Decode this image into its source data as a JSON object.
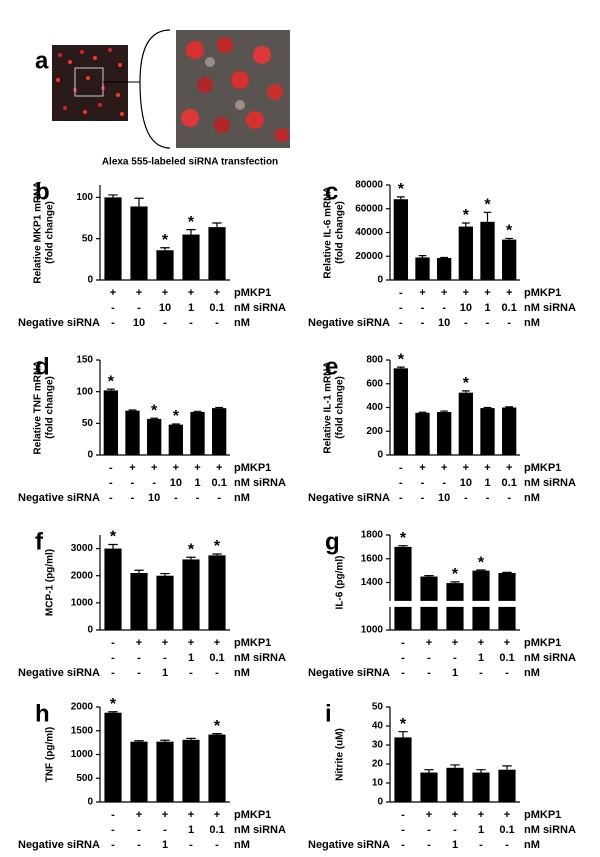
{
  "panel_a": {
    "label": "a",
    "caption": "Alexa 555-labeled siRNA transfection"
  },
  "chart_data": [
    {
      "type": "bar",
      "label": "b",
      "ylabel": [
        "Relative MKP1 mRNA",
        "(fold change)"
      ],
      "values": [
        100,
        89,
        36,
        55,
        64
      ],
      "errors": [
        3,
        10,
        3,
        6,
        5
      ],
      "stars": [
        null,
        null,
        "*",
        "*",
        null
      ],
      "ylim": [
        0,
        115
      ],
      "yticks": [
        0,
        50,
        100
      ],
      "color": "#000000",
      "rows": [
        {
          "right": "pMKP1",
          "cells": [
            "+",
            "+",
            "+",
            "+",
            "+"
          ]
        },
        {
          "right": "nM siRNA",
          "cells": [
            "-",
            "-",
            "10",
            "1",
            "0.1"
          ]
        },
        {
          "left": "Negative siRNA",
          "right": "nM",
          "cells": [
            "-",
            "10",
            "-",
            "-",
            "-"
          ]
        }
      ]
    },
    {
      "type": "bar",
      "label": "c",
      "ylabel": [
        "Relative IL-6 mRNA",
        "(fold change)"
      ],
      "values": [
        68000,
        19000,
        18500,
        45000,
        49000,
        34000
      ],
      "errors": [
        2000,
        1500,
        500,
        3000,
        8000,
        1000
      ],
      "stars": [
        "*",
        null,
        null,
        "*",
        "*",
        "*"
      ],
      "ylim": [
        0,
        80000
      ],
      "yticks": [
        0,
        20000,
        40000,
        60000,
        80000
      ],
      "color": "#000000",
      "rows": [
        {
          "right": "pMKP1",
          "cells": [
            "-",
            "+",
            "+",
            "+",
            "+",
            "+"
          ]
        },
        {
          "right": "nM siRNA",
          "cells": [
            "-",
            "-",
            "-",
            "10",
            "1",
            "0.1"
          ]
        },
        {
          "left": "Negative siRNA",
          "right": "nM",
          "cells": [
            "-",
            "-",
            "10",
            "-",
            "-",
            "-"
          ]
        }
      ]
    },
    {
      "type": "bar",
      "label": "d",
      "ylabel": [
        "Relative TNF mRNA",
        "(fold change)"
      ],
      "values": [
        102,
        70,
        57,
        48,
        68,
        74
      ],
      "errors": [
        2,
        1,
        1,
        1,
        1,
        1
      ],
      "stars": [
        "*",
        null,
        "*",
        "*",
        null,
        null
      ],
      "ylim": [
        0,
        150
      ],
      "yticks": [
        0,
        50,
        100,
        150
      ],
      "color": "#000000",
      "rows": [
        {
          "right": "pMKP1",
          "cells": [
            "-",
            "+",
            "+",
            "+",
            "+",
            "+"
          ]
        },
        {
          "right": "nM siRNA",
          "cells": [
            "-",
            "-",
            "-",
            "10",
            "1",
            "0.1"
          ]
        },
        {
          "left": "Negative siRNA",
          "right": "nM",
          "cells": [
            "-",
            "-",
            "10",
            "-",
            "-",
            "-"
          ]
        }
      ]
    },
    {
      "type": "bar",
      "label": "e",
      "ylabel": [
        "Relative IL-1 mRNA",
        "(fold change)"
      ],
      "values": [
        730,
        355,
        362,
        525,
        395,
        400
      ],
      "errors": [
        10,
        5,
        8,
        15,
        5,
        5
      ],
      "stars": [
        "*",
        null,
        null,
        "*",
        null,
        null
      ],
      "ylim": [
        0,
        800
      ],
      "yticks": [
        0,
        200,
        400,
        600,
        800
      ],
      "color": "#000000",
      "rows": [
        {
          "right": "pMKP1",
          "cells": [
            "-",
            "+",
            "+",
            "+",
            "+",
            "+"
          ]
        },
        {
          "right": "nM siRNA",
          "cells": [
            "-",
            "-",
            "-",
            "10",
            "1",
            "0.1"
          ]
        },
        {
          "left": "Negative siRNA",
          "right": "nM",
          "cells": [
            "-",
            "-",
            "10",
            "-",
            "-",
            "-"
          ]
        }
      ]
    },
    {
      "type": "bar",
      "label": "f",
      "ylabel": [
        "MCP-1 (pg/ml)"
      ],
      "values": [
        3000,
        2100,
        2000,
        2600,
        2750
      ],
      "errors": [
        150,
        100,
        80,
        80,
        50
      ],
      "stars": [
        "*",
        null,
        null,
        "*",
        "*"
      ],
      "ylim": [
        0,
        3500
      ],
      "yticks": [
        0,
        1000,
        2000,
        3000
      ],
      "color": "#000000",
      "rows": [
        {
          "right": "pMKP1",
          "cells": [
            "-",
            "+",
            "+",
            "+",
            "+"
          ]
        },
        {
          "right": "nM siRNA",
          "cells": [
            "-",
            "-",
            "-",
            "1",
            "0.1"
          ]
        },
        {
          "left": "Negative siRNA",
          "right": "nM",
          "cells": [
            "-",
            "-",
            "1",
            "-",
            "-"
          ]
        }
      ]
    },
    {
      "type": "bar",
      "label": "g",
      "ylabel": [
        "IL-6 (pg/ml)"
      ],
      "values": [
        1700,
        1450,
        1395,
        1500,
        1480
      ],
      "errors": [
        10,
        8,
        10,
        5,
        5
      ],
      "stars": [
        "*",
        null,
        "*",
        "*",
        null
      ],
      "ylim": [
        1000,
        1800
      ],
      "yticks": [
        1000,
        1400,
        1600,
        1800
      ],
      "broken_axis": true,
      "color": "#000000",
      "rows": [
        {
          "right": "pMKP1",
          "cells": [
            "-",
            "+",
            "+",
            "+",
            "+"
          ]
        },
        {
          "right": "nM siRNA",
          "cells": [
            "-",
            "-",
            "-",
            "1",
            "0.1"
          ]
        },
        {
          "left": "Negative siRNA",
          "right": "nM",
          "cells": [
            "-",
            "-",
            "1",
            "-",
            "-"
          ]
        }
      ]
    },
    {
      "type": "bar",
      "label": "h",
      "ylabel": [
        "TNF (pg/ml)"
      ],
      "values": [
        1880,
        1270,
        1270,
        1310,
        1420
      ],
      "errors": [
        20,
        20,
        30,
        30,
        20
      ],
      "stars": [
        "*",
        null,
        null,
        null,
        "*"
      ],
      "ylim": [
        0,
        2000
      ],
      "yticks": [
        0,
        500,
        1000,
        1500,
        2000
      ],
      "color": "#000000",
      "rows": [
        {
          "right": "pMKP1",
          "cells": [
            "-",
            "+",
            "+",
            "+",
            "+"
          ]
        },
        {
          "right": "nM siRNA",
          "cells": [
            "-",
            "-",
            "-",
            "1",
            "0.1"
          ]
        },
        {
          "left": "Negative siRNA",
          "right": "nM",
          "cells": [
            "-",
            "-",
            "1",
            "-",
            "-"
          ]
        }
      ]
    },
    {
      "type": "bar",
      "label": "i",
      "ylabel": [
        "Nitrite (uM)"
      ],
      "values": [
        34,
        15.5,
        18,
        15.5,
        17
      ],
      "errors": [
        3,
        1.5,
        1.5,
        1.5,
        2
      ],
      "stars": [
        "*",
        null,
        null,
        null,
        null
      ],
      "ylim": [
        0,
        50
      ],
      "yticks": [
        0,
        10,
        20,
        30,
        40,
        50
      ],
      "color": "#000000",
      "rows": [
        {
          "right": "pMKP1",
          "cells": [
            "-",
            "+",
            "+",
            "+",
            "+"
          ]
        },
        {
          "right": "nM siRNA",
          "cells": [
            "-",
            "-",
            "-",
            "1",
            "0.1"
          ]
        },
        {
          "left": "Negative siRNA",
          "right": "nM",
          "cells": [
            "-",
            "-",
            "1",
            "-",
            "-"
          ]
        }
      ]
    }
  ]
}
